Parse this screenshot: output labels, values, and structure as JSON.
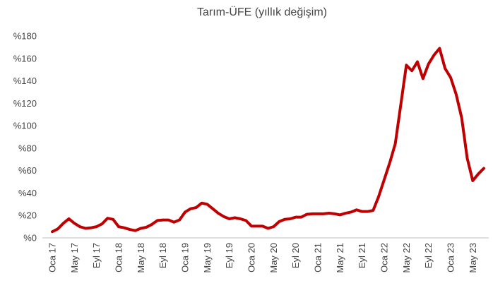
{
  "chart_data": {
    "type": "line",
    "title": "Tarım-ÜFE (yıllık değişim)",
    "categories": [
      "Oca 17",
      null,
      null,
      null,
      "May 17",
      null,
      null,
      null,
      "Eyl 17",
      null,
      null,
      null,
      "Oca 18",
      null,
      null,
      null,
      "May 18",
      null,
      null,
      null,
      "Eyl 18",
      null,
      null,
      null,
      "Oca 19",
      null,
      null,
      null,
      "May 19",
      null,
      null,
      null,
      "Eyl 19",
      null,
      null,
      null,
      "Oca 20",
      null,
      null,
      null,
      "May 20",
      null,
      null,
      null,
      "Eyl 20",
      null,
      null,
      null,
      "Oca 21",
      null,
      null,
      null,
      "May 21",
      null,
      null,
      null,
      "Eyl 21",
      null,
      null,
      null,
      "Oca 22",
      null,
      null,
      null,
      "May 22",
      null,
      null,
      null,
      "Eyl 22",
      null,
      null,
      null,
      "Oca 23",
      null,
      null,
      null,
      "May 23",
      null,
      null
    ],
    "series": [
      {
        "name": "Tarım-ÜFE",
        "color": "#c00000",
        "values": [
          5.5,
          8,
          13,
          17,
          13,
          10,
          8.5,
          9,
          10,
          12.5,
          17.5,
          16.5,
          10,
          9,
          7.5,
          6.5,
          8.5,
          9.5,
          12,
          15.5,
          16,
          16,
          14,
          16,
          23,
          26,
          27,
          31,
          30,
          26,
          22,
          19,
          17,
          18,
          17,
          15.5,
          10.5,
          10.5,
          10.5,
          8.5,
          10,
          14.5,
          16.5,
          17,
          18.5,
          18.5,
          21,
          21.5,
          21.5,
          21.5,
          22,
          21.5,
          20.5,
          22,
          23,
          25,
          23.5,
          23.5,
          24.5,
          37,
          52,
          67,
          84,
          119,
          154,
          149,
          157,
          142,
          155,
          163,
          169,
          151,
          143,
          128,
          107,
          71,
          51,
          57,
          62
        ]
      }
    ],
    "ylim": [
      0,
      180
    ],
    "yticks": [
      {
        "value": 0,
        "label": "%0"
      },
      {
        "value": 20,
        "label": "%20"
      },
      {
        "value": 40,
        "label": "%40"
      },
      {
        "value": 60,
        "label": "%60"
      },
      {
        "value": 80,
        "label": "%80"
      },
      {
        "value": 100,
        "label": "%100"
      },
      {
        "value": 120,
        "label": "%120"
      },
      {
        "value": 140,
        "label": "%140"
      },
      {
        "value": 160,
        "label": "%160"
      },
      {
        "value": 180,
        "label": "%180"
      }
    ],
    "grid": false
  }
}
